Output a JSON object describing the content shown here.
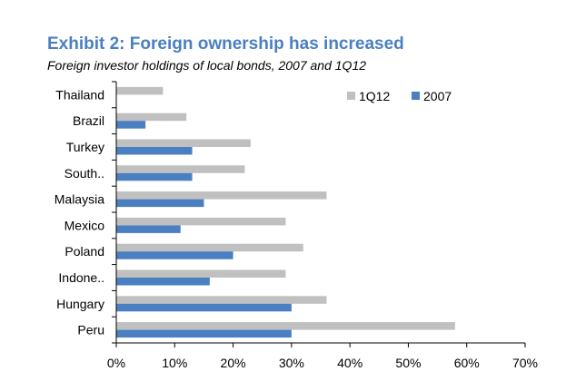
{
  "chart_data": {
    "type": "bar",
    "orientation": "horizontal",
    "title": "Exhibit 2: Foreign ownership has increased",
    "subtitle": "Foreign investor holdings of local bonds, 2007 and 1Q12",
    "categories": [
      "Thailand",
      "Brazil",
      "Turkey",
      "South..",
      "Malaysia",
      "Mexico",
      "Poland",
      "Indone..",
      "Hungary",
      "Peru"
    ],
    "series": [
      {
        "name": "1Q12",
        "color": "#c0c0c0",
        "values": [
          8,
          12,
          23,
          22,
          36,
          29,
          32,
          29,
          36,
          58
        ]
      },
      {
        "name": "2007",
        "color": "#4a7fc1",
        "values": [
          0,
          5,
          13,
          13,
          15,
          11,
          20,
          16,
          30,
          30
        ]
      }
    ],
    "xlim": [
      0,
      70
    ],
    "xticks": [
      0,
      10,
      20,
      30,
      40,
      50,
      60,
      70
    ],
    "xtick_labels": [
      "0%",
      "10%",
      "20%",
      "30%",
      "40%",
      "50%",
      "60%",
      "70%"
    ],
    "grid": false,
    "legend": "top-right"
  }
}
